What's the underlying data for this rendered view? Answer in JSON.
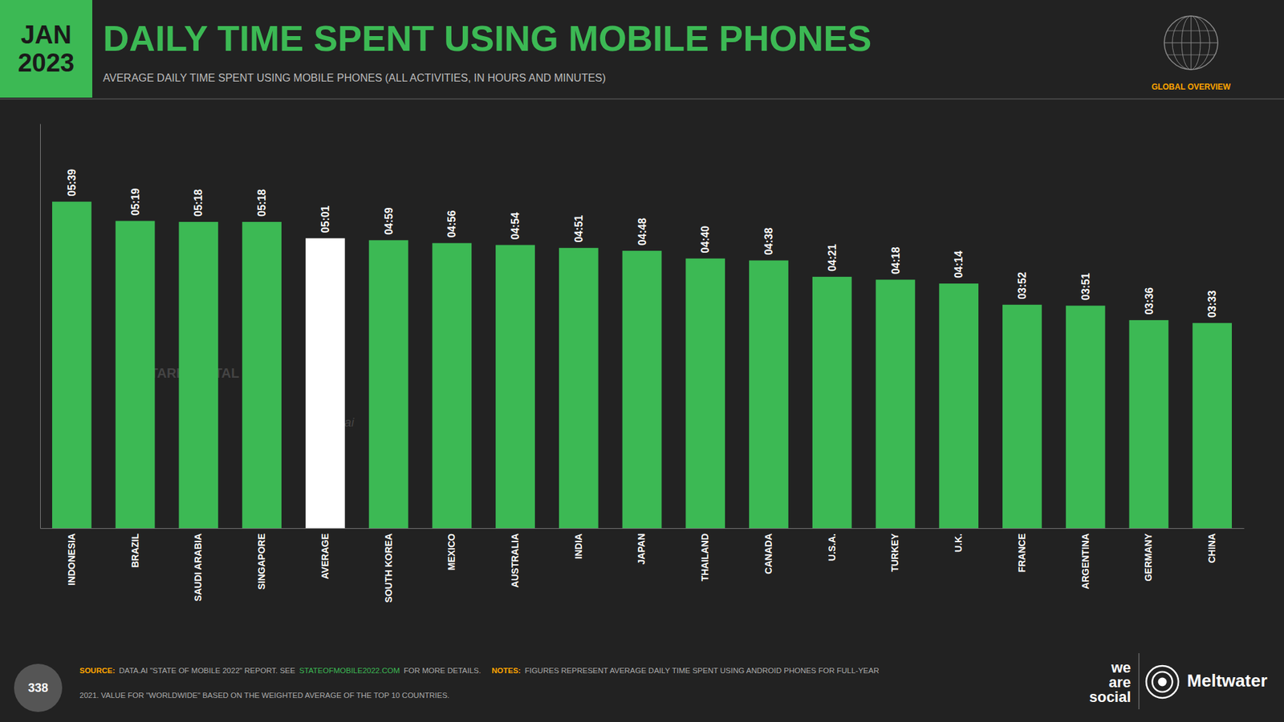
{
  "chart_data": {
    "type": "bar",
    "title": "DAILY TIME SPENT USING MOBILE PHONES",
    "subtitle": "AVERAGE DAILY TIME SPENT USING MOBILE PHONES (ALL ACTIVITIES, IN HOURS AND MINUTES)",
    "categories": [
      "INDONESIA",
      "BRAZIL",
      "SAUDI ARABIA",
      "SINGAPORE",
      "AVERAGE",
      "SOUTH KOREA",
      "MEXICO",
      "AUSTRALIA",
      "INDIA",
      "JAPAN",
      "THAILAND",
      "CANADA",
      "U.S.A.",
      "TURKEY",
      "U.K.",
      "FRANCE",
      "ARGENTINA",
      "GERMANY",
      "CHINA"
    ],
    "values": [
      339,
      319,
      318,
      318,
      301,
      299,
      296,
      294,
      291,
      288,
      280,
      278,
      261,
      258,
      254,
      232,
      231,
      216,
      213
    ],
    "value_labels": [
      "05:39",
      "05:19",
      "05:18",
      "05:18",
      "05:01",
      "04:59",
      "04:56",
      "04:54",
      "04:51",
      "04:48",
      "04:40",
      "04:38",
      "04:21",
      "04:18",
      "04:14",
      "03:52",
      "03:51",
      "03:36",
      "03:33"
    ],
    "colors": [
      "#3cb954",
      "#3cb954",
      "#3cb954",
      "#3cb954",
      "#FFFFFF",
      "#3cb954",
      "#3cb954",
      "#3cb954",
      "#3cb954",
      "#3cb954",
      "#3cb954",
      "#3cb954",
      "#3cb954",
      "#3cb954",
      "#3cb954",
      "#3cb954",
      "#3cb954",
      "#3cb954",
      "#3cb954"
    ],
    "ylim": [
      0,
      420
    ],
    "yticks": [],
    "tick_labels": "x",
    "grid": false,
    "data_labels": true,
    "annotations": [
      "JAN\n2023",
      "GLOBAL OVERVIEW",
      "© DATAREPORTAL",
      "data.ai",
      "338",
      "SOURCE:",
      "DATA.AI \"STATE OF MOBILE 2022\" REPORT. SEE",
      "STATEOFMOBILE2022.COM",
      "FOR MORE DETAILS.",
      "NOTES:",
      "FIGURES REPRESENT AVERAGE DAILY TIME SPENT USING ANDROID PHONES FOR FULL-YEAR",
      "2021. VALUE FOR \"WORLDWIDE\" BASED ON THE WEIGHTED AVERAGE OF THE TOP 10 COUNTRIES.",
      "we\nare\nsocial",
      "Meltwater"
    ]
  }
}
